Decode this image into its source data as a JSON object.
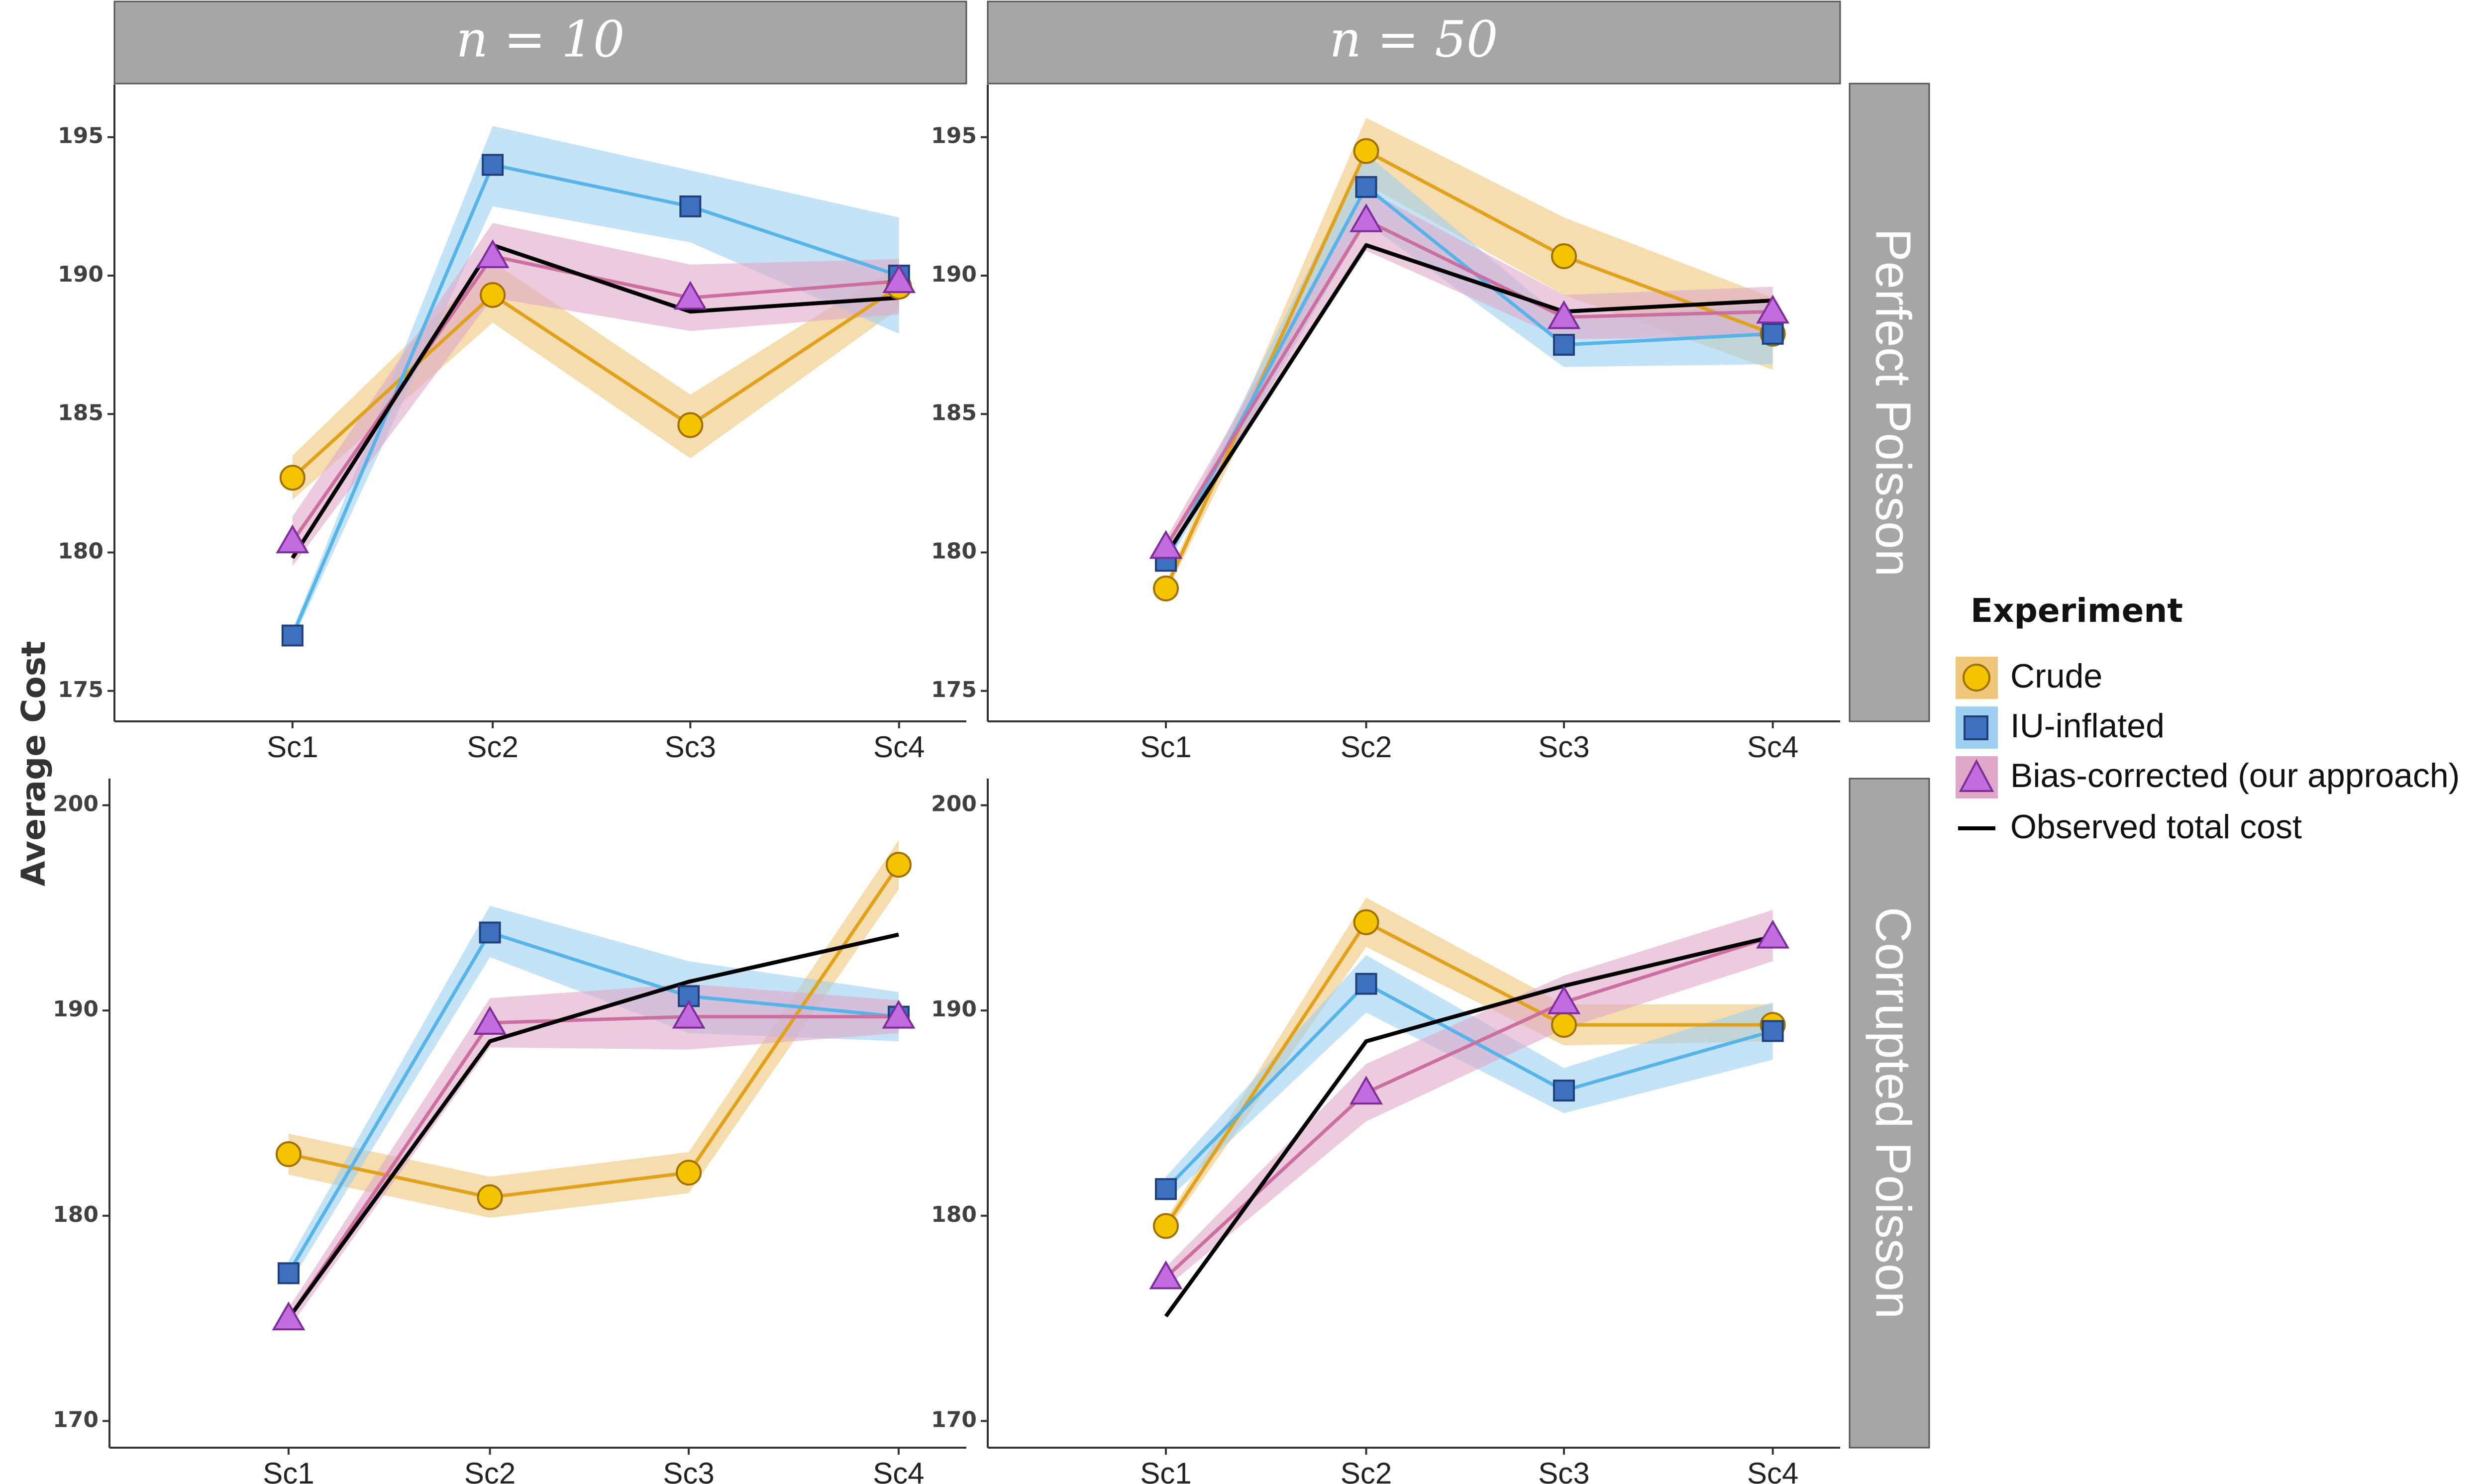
{
  "chart_data": {
    "type": "line",
    "ylabel": "Average  Cost",
    "col_facets": [
      "n = 10",
      "n = 50"
    ],
    "row_facets": [
      "Perfect Poisson",
      "Corrupted Poisson"
    ],
    "categories": [
      "Sc1",
      "Sc2",
      "Sc3",
      "Sc4"
    ],
    "legend": {
      "title": "Experiment",
      "position": "right",
      "entries": [
        {
          "key": "crude",
          "label": "Crude",
          "marker": "circle"
        },
        {
          "key": "iu",
          "label": "IU-inflated",
          "marker": "square"
        },
        {
          "key": "bias",
          "label": "Bias-corrected (our approach)",
          "marker": "triangle"
        },
        {
          "key": "observed",
          "label": "Observed total cost",
          "marker": "line"
        }
      ]
    },
    "colors": {
      "crude_line": "#e0a11b",
      "crude_band": "#f0c67a",
      "crude_marker": "#f5c400",
      "crude_marker_stroke": "#a07000",
      "iu_line": "#56b4e9",
      "iu_band": "#9fd0f1",
      "iu_marker": "#3e70c0",
      "iu_marker_stroke": "#1f3f7a",
      "bias_line": "#cc6fa0",
      "bias_band": "#e0a8c8",
      "bias_marker": "#c36ce0",
      "bias_marker_stroke": "#7d2d99",
      "observed_line": "#000000",
      "strip": "#a6a6a6"
    },
    "panels": [
      {
        "col": 0,
        "row": 0,
        "ylim": [
          173.9,
          196.9
        ],
        "yticks": [
          175,
          180,
          185,
          190,
          195
        ],
        "series": [
          {
            "key": "crude",
            "values": [
              182.7,
              189.3,
              184.6,
              189.6
            ],
            "lower": [
              181.9,
              188.3,
              183.4,
              188.8
            ],
            "upper": [
              183.5,
              190.5,
              185.7,
              190.4
            ]
          },
          {
            "key": "iu",
            "values": [
              177.0,
              194.0,
              192.5,
              190.0
            ],
            "lower": [
              176.8,
              192.5,
              191.2,
              187.9
            ],
            "upper": [
              177.2,
              195.4,
              193.8,
              192.1
            ]
          },
          {
            "key": "bias",
            "values": [
              180.4,
              190.7,
              189.2,
              189.8
            ],
            "lower": [
              179.5,
              189.2,
              188.0,
              188.6
            ],
            "upper": [
              181.3,
              191.9,
              190.4,
              190.6
            ]
          },
          {
            "key": "observed",
            "values": [
              179.8,
              191.1,
              188.7,
              189.2
            ]
          }
        ]
      },
      {
        "col": 1,
        "row": 0,
        "ylim": [
          173.9,
          196.9
        ],
        "yticks": [
          175,
          180,
          185,
          190,
          195
        ],
        "series": [
          {
            "key": "crude",
            "values": [
              178.7,
              194.5,
              190.7,
              187.9
            ],
            "lower": [
              178.5,
              193.3,
              189.3,
              186.6
            ],
            "upper": [
              178.9,
              195.7,
              192.1,
              189.2
            ]
          },
          {
            "key": "iu",
            "values": [
              179.7,
              193.2,
              187.5,
              187.9
            ],
            "lower": [
              179.5,
              191.9,
              186.7,
              186.8
            ],
            "upper": [
              179.9,
              194.4,
              188.4,
              189.0
            ]
          },
          {
            "key": "bias",
            "values": [
              180.2,
              192.0,
              188.5,
              188.7
            ],
            "lower": [
              179.9,
              190.9,
              187.7,
              187.8
            ],
            "upper": [
              180.5,
              193.1,
              189.3,
              189.6
            ]
          },
          {
            "key": "observed",
            "values": [
              179.9,
              191.1,
              188.7,
              189.1
            ]
          }
        ]
      },
      {
        "col": 0,
        "row": 1,
        "ylim": [
          168.7,
          201.3
        ],
        "yticks": [
          170,
          180,
          190,
          200
        ],
        "series": [
          {
            "key": "crude",
            "values": [
              183.0,
              180.9,
              182.1,
              197.1
            ],
            "lower": [
              182.0,
              179.9,
              181.1,
              195.9
            ],
            "upper": [
              184.0,
              181.9,
              183.1,
              198.3
            ]
          },
          {
            "key": "iu",
            "values": [
              177.2,
              193.8,
              190.7,
              189.7
            ],
            "lower": [
              176.6,
              192.6,
              188.9,
              188.5
            ],
            "upper": [
              177.8,
              195.1,
              192.4,
              190.9
            ]
          },
          {
            "key": "bias",
            "values": [
              175.0,
              189.4,
              189.7,
              189.7
            ],
            "lower": [
              174.5,
              188.2,
              188.1,
              188.9
            ],
            "upper": [
              175.5,
              190.6,
              191.3,
              190.5
            ]
          },
          {
            "key": "observed",
            "values": [
              175.0,
              188.5,
              191.4,
              193.7
            ]
          }
        ]
      },
      {
        "col": 1,
        "row": 1,
        "ylim": [
          168.7,
          201.3
        ],
        "yticks": [
          170,
          180,
          190,
          200
        ],
        "series": [
          {
            "key": "crude",
            "values": [
              179.5,
              194.3,
              189.3,
              189.3
            ],
            "lower": [
              179.2,
              193.1,
              188.3,
              188.5
            ],
            "upper": [
              179.8,
              195.5,
              190.3,
              190.3
            ]
          },
          {
            "key": "iu",
            "values": [
              181.3,
              191.3,
              186.1,
              189.0
            ],
            "lower": [
              180.7,
              189.9,
              185.0,
              187.6
            ],
            "upper": [
              181.9,
              192.7,
              187.2,
              190.4
            ]
          },
          {
            "key": "bias",
            "values": [
              177.0,
              186.0,
              190.4,
              193.6
            ],
            "lower": [
              176.5,
              184.6,
              189.1,
              192.4
            ],
            "upper": [
              177.5,
              187.4,
              191.7,
              194.9
            ]
          },
          {
            "key": "observed",
            "values": [
              175.1,
              188.5,
              191.2,
              193.6
            ]
          }
        ]
      }
    ]
  }
}
